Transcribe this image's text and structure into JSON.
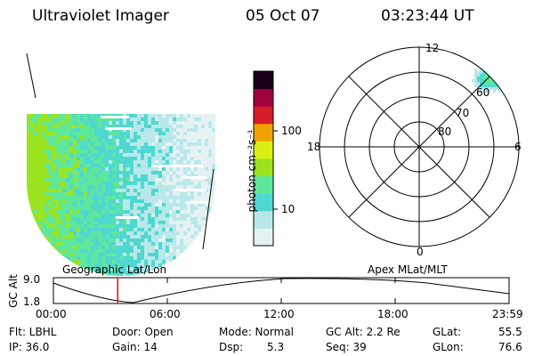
{
  "header": {
    "instrument": "Ultraviolet Imager",
    "date": "05 Oct 07",
    "time": "03:23:44 UT"
  },
  "colorbar": {
    "label": "photon cm⁻²s⁻¹",
    "ticks": [
      "100",
      "10"
    ]
  },
  "polar_plot": {
    "mlt_labels": {
      "top": "12",
      "left": "18",
      "right": "6",
      "bottom": "0"
    },
    "lat_labels": [
      "60",
      "70",
      "80"
    ]
  },
  "projection": {
    "left_label": "Geographic Lat/Lon",
    "right_label": "Apex MLat/MLT"
  },
  "altitude_plot": {
    "ylabel": "GC Alt",
    "yticks": [
      "9.0",
      "1.8"
    ],
    "xticks": [
      "00:00",
      "06:00",
      "12:00",
      "18:00",
      "23:59"
    ],
    "current_time_fraction": 0.141
  },
  "status": {
    "filter": "Flt: LBHL",
    "ip": "IP: 36.0",
    "door": "Door: Open",
    "gain": "Gain: 14",
    "mode": "Mode: Normal",
    "dsp_label": "Dsp:",
    "dsp_value": "5.3",
    "gc_alt": "GC Alt: 2.2 Re",
    "seq": "Seq: 39",
    "glat_label": "GLat:",
    "glat_value": "55.5",
    "glon_label": "GLon:",
    "glon_value": "76.6"
  },
  "colors": {
    "scale": [
      "#e6f2f2",
      "#b9e8ea",
      "#4fd8d0",
      "#5ee79a",
      "#9be41f",
      "#d9ee11",
      "#f0a300",
      "#d81d2a",
      "#a0003c",
      "#1a0018"
    ],
    "time_marker": "#e00000"
  }
}
